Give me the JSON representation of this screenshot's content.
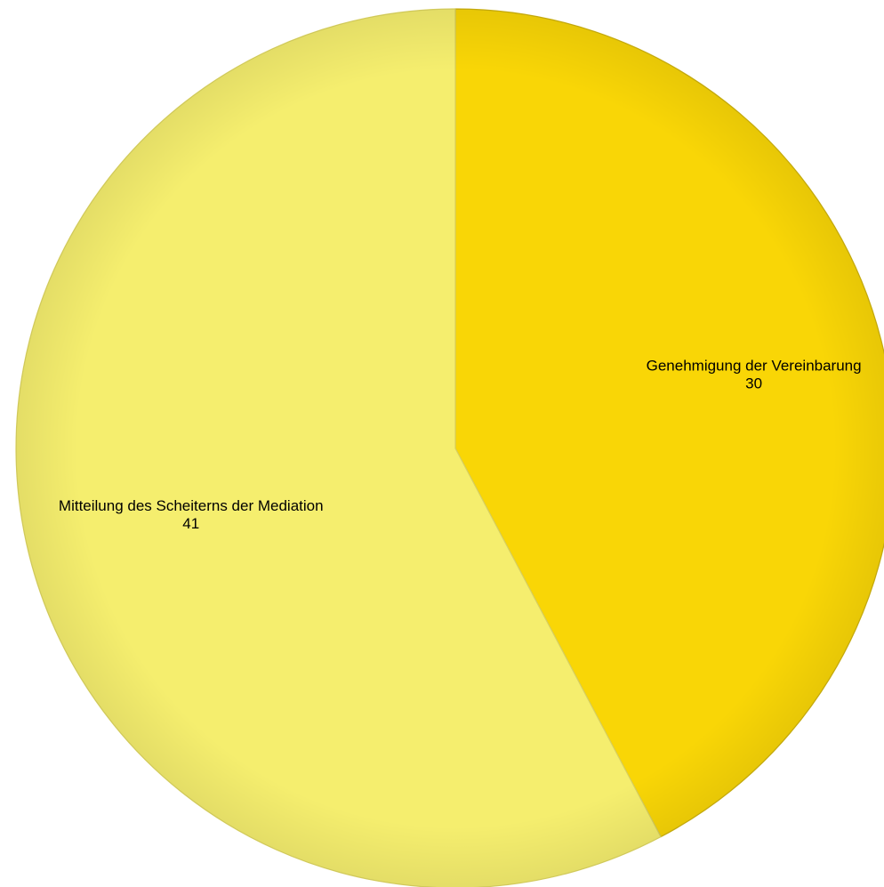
{
  "chart_data": {
    "type": "pie",
    "categories": [
      "Genehmigung der Vereinbarung",
      "Mitteilung des Scheiterns der Mediation"
    ],
    "values": [
      30,
      41
    ],
    "colors": [
      "#F9D606",
      "#F5EE6E"
    ],
    "edge_colors": [
      "#C9AE10",
      "#D8D060"
    ],
    "start_angle_deg": 0,
    "direction": "clockwise",
    "title": "",
    "data_labels": [
      "30",
      "41"
    ]
  }
}
